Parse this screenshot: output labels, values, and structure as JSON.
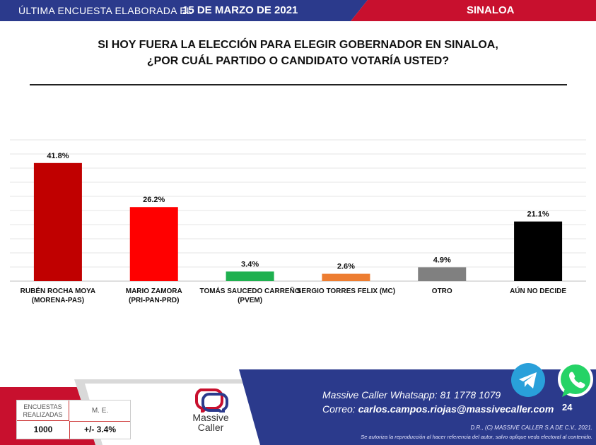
{
  "header": {
    "prefix": "ÚLTIMA ENCUESTA ELABORADA EL",
    "date": "15 DE MARZO DE 2021",
    "region": "SINALOA"
  },
  "question": {
    "line1": "SI HOY FUERA LA ELECCIÓN PARA ELEGIR GOBERNADOR EN SINALOA,",
    "line2": "¿POR CUÁL PARTIDO O CANDIDATO VOTARÍA USTED?"
  },
  "colors": {
    "navy": "#2b3a8c",
    "red": "#c8102e"
  },
  "chart_data": {
    "type": "bar",
    "categories": [
      [
        "RUBÉN ROCHA MOYA",
        "(MORENA-PAS)"
      ],
      [
        "MARIO ZAMORA",
        "(PRI-PAN-PRD)"
      ],
      [
        "TOMÁS SAUCEDO CARREÑO",
        "(PVEM)"
      ],
      [
        "SERGIO TORRES FELIX (MC)"
      ],
      [
        "OTRO"
      ],
      [
        "AÚN NO DECIDE"
      ]
    ],
    "values": [
      41.8,
      26.2,
      3.4,
      2.6,
      4.9,
      21.1
    ],
    "value_labels": [
      "41.8%",
      "26.2%",
      "3.4%",
      "2.6%",
      "4.9%",
      "21.1%"
    ],
    "colors": [
      "#c00000",
      "#ff0000",
      "#1fb04f",
      "#ed7d31",
      "#808080",
      "#000000"
    ],
    "ylim": [
      0,
      50
    ],
    "grid": true,
    "legend": "none"
  },
  "footer": {
    "stats": {
      "label1": "ENCUESTAS REALIZADAS",
      "label2": "M. E.",
      "value1": "1000",
      "value2": "+/- 3.4%"
    },
    "logo_text": "Massive Caller",
    "whatsapp": "Massive Caller Whatsapp:  81 1778 1079",
    "email_label": "Correo: ",
    "email": "carlos.campos.riojas@massivecaller.com",
    "page": "24",
    "copyright": "D.R., (C) MASSIVE CALLER S.A DE C.V., 2021.",
    "disclaimer": "Se autoriza la reproducción al hacer referencia del autor, salvo oplique veda electoral al contenido."
  }
}
